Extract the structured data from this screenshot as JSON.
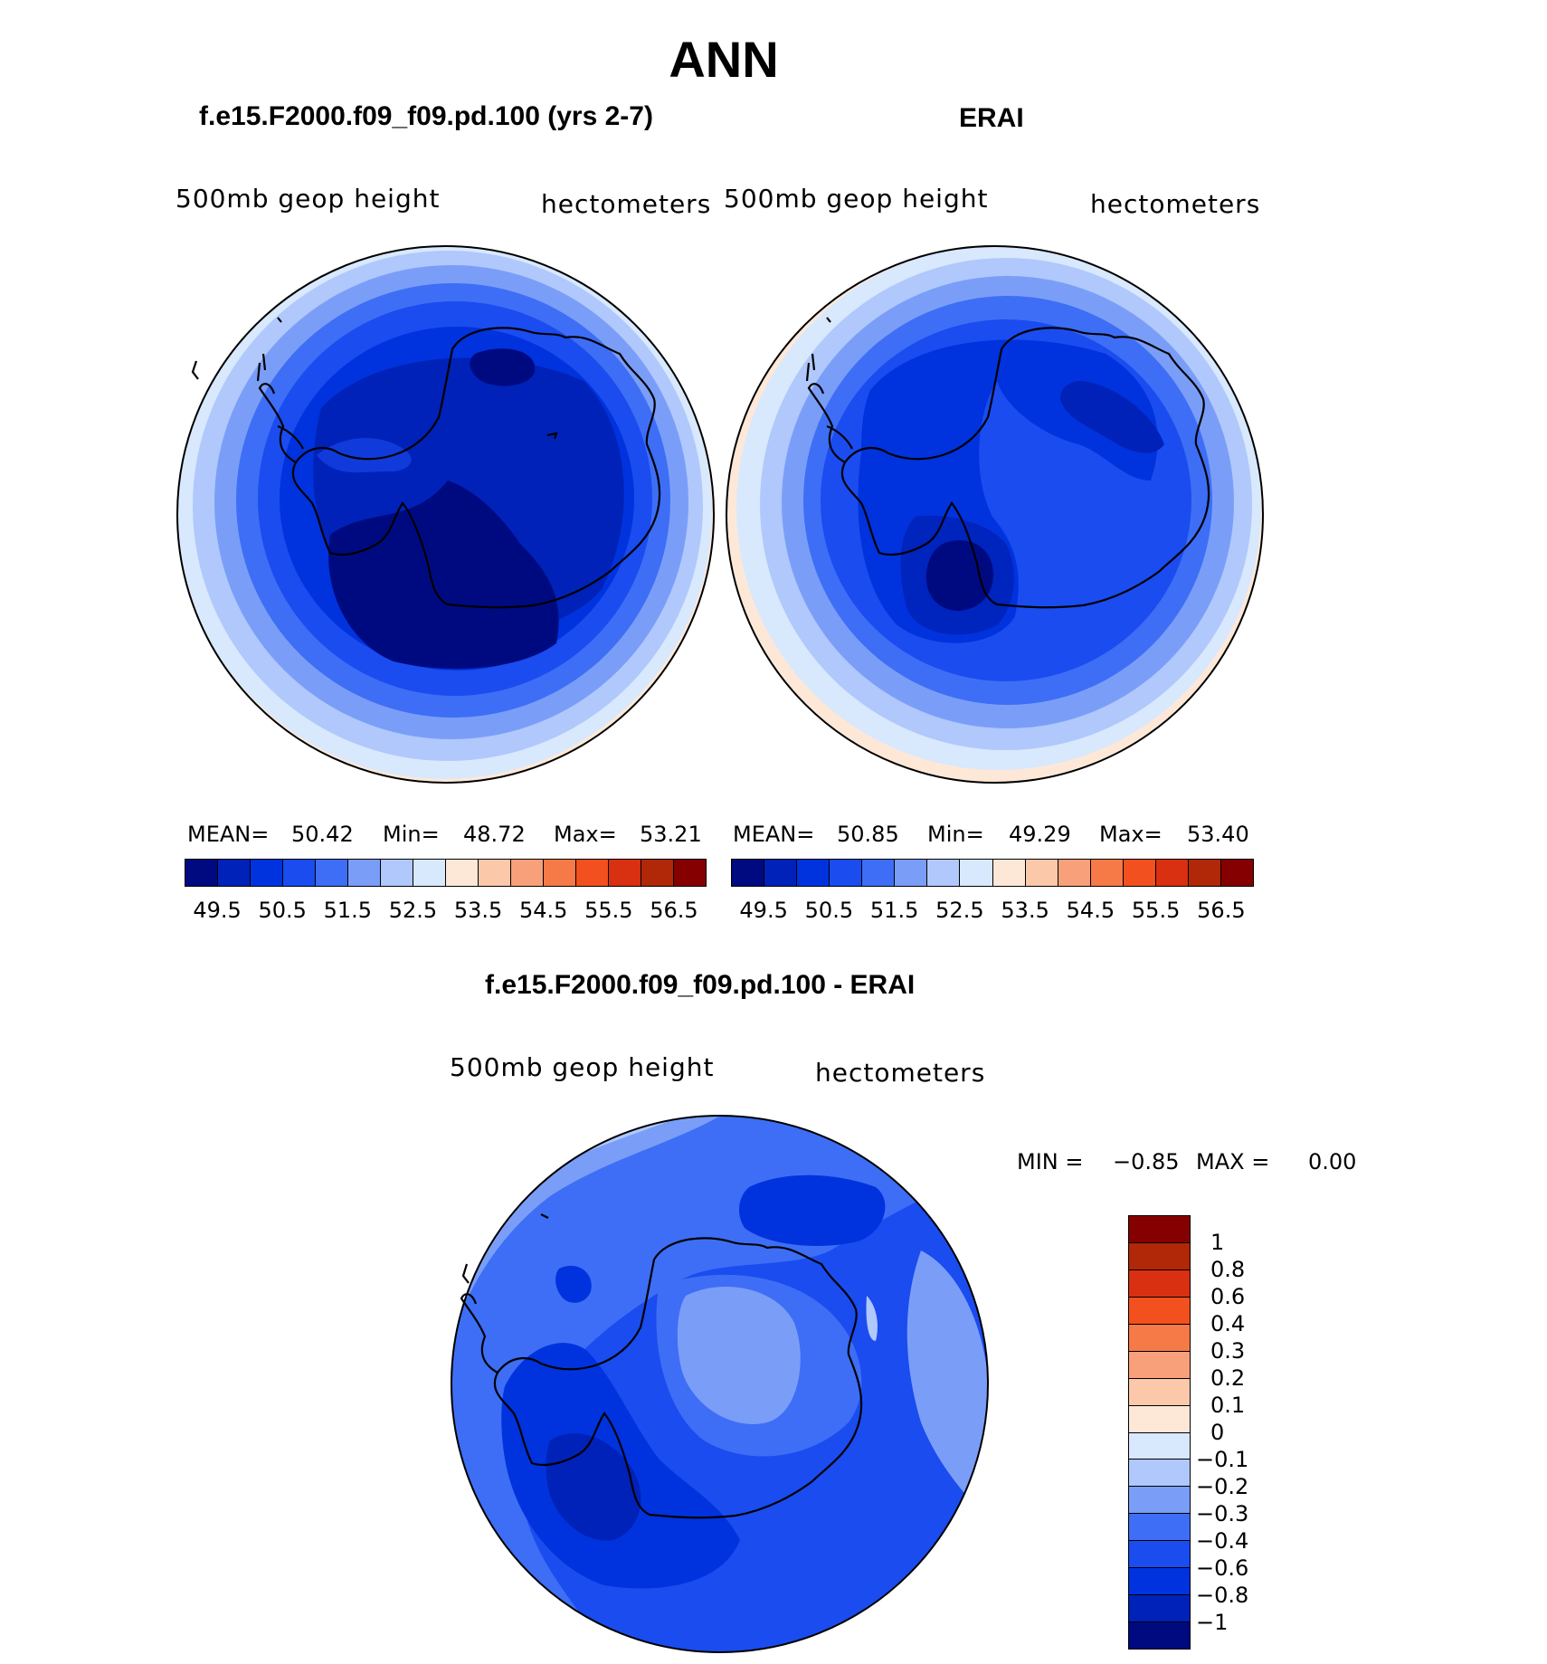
{
  "figure": {
    "title": "ANN"
  },
  "panels": [
    {
      "title": "f.e15.F2000.f09_f09.pd.100 (yrs 2-7)",
      "variable": "500mb geop height",
      "units": "hectometers",
      "stats": {
        "mean_label": "MEAN=",
        "mean": "50.42",
        "min_label": "Min=",
        "min": "48.72",
        "max_label": "Max=",
        "max": "53.21"
      }
    },
    {
      "title": "ERAI",
      "variable": "500mb geop height",
      "units": "hectometers",
      "stats": {
        "mean_label": "MEAN=",
        "mean": "50.85",
        "min_label": "Min=",
        "min": "49.29",
        "max_label": "Max=",
        "max": "53.40"
      }
    }
  ],
  "diff_panel": {
    "title": "f.e15.F2000.f09_f09.pd.100 - ERAI",
    "variable": "500mb geop height",
    "units": "hectometers",
    "min_label": "MIN =",
    "min": "−0.85",
    "max_label": "MAX =",
    "max": "0.00"
  },
  "chart_data": [
    {
      "type": "contour-map",
      "projection": "south-polar-stereographic",
      "title": "f.e15.F2000.f09_f09.pd.100 (yrs 2-7)",
      "field": "500mb geop height",
      "units": "hectometers",
      "mean": 50.42,
      "min": 48.72,
      "max": 53.21,
      "contour_levels": [
        49.5,
        50,
        50.5,
        51,
        51.5,
        52,
        52.5,
        53,
        53.5,
        54,
        54.5,
        55,
        55.5,
        56,
        56.5
      ],
      "colorbar_tick_labels": [
        "49.5",
        "50.5",
        "51.5",
        "52.5",
        "53.5",
        "54.5",
        "55.5",
        "56.5"
      ]
    },
    {
      "type": "contour-map",
      "projection": "south-polar-stereographic",
      "title": "ERAI",
      "field": "500mb geop height",
      "units": "hectometers",
      "mean": 50.85,
      "min": 49.29,
      "max": 53.4,
      "contour_levels": [
        49.5,
        50,
        50.5,
        51,
        51.5,
        52,
        52.5,
        53,
        53.5,
        54,
        54.5,
        55,
        55.5,
        56,
        56.5
      ],
      "colorbar_tick_labels": [
        "49.5",
        "50.5",
        "51.5",
        "52.5",
        "53.5",
        "54.5",
        "55.5",
        "56.5"
      ]
    },
    {
      "type": "contour-map",
      "projection": "south-polar-stereographic",
      "title": "f.e15.F2000.f09_f09.pd.100 - ERAI",
      "field": "500mb geop height difference",
      "units": "hectometers",
      "min": -0.85,
      "max": 0.0,
      "contour_levels": [
        -1,
        -0.8,
        -0.6,
        -0.4,
        -0.3,
        -0.2,
        -0.1,
        0,
        0.1,
        0.2,
        0.3,
        0.4,
        0.6,
        0.8,
        1
      ],
      "colorbar_tick_labels": [
        "1",
        "0.8",
        "0.6",
        "0.4",
        "0.3",
        "0.2",
        "0.1",
        "0",
        "−0.1",
        "−0.2",
        "−0.3",
        "−0.4",
        "−0.6",
        "−0.8",
        "−1"
      ]
    }
  ],
  "colors": {
    "palette": [
      "#000a80",
      "#0022b8",
      "#0033dd",
      "#1a4cf0",
      "#3d6ef5",
      "#7a9ef8",
      "#b0c8fb",
      "#d8e8fd",
      "#fde8d8",
      "#fbc8aa",
      "#f8a07a",
      "#f67a48",
      "#f2501e",
      "#d83010",
      "#b02808",
      "#850000"
    ],
    "coastline": "#000000"
  }
}
